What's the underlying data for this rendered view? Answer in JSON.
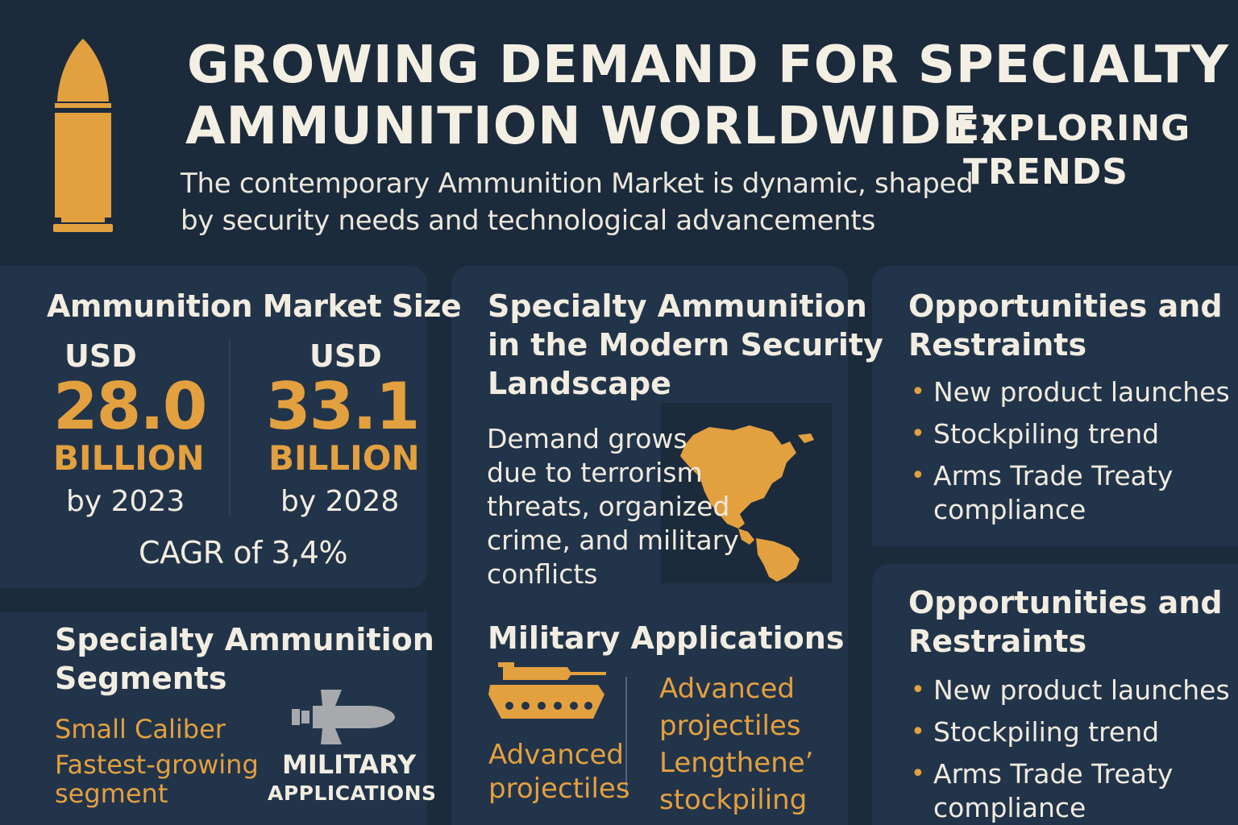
{
  "header": {
    "title_line1": "GROWING DEMAND FOR SPECIALTY",
    "title_line2": "AMMUNITION WORLDWIDE:",
    "title_line3a": "EXPLORING",
    "title_line3b": "TRENDS",
    "intro_line1": "The contemporary Ammunition Market is dynamic, shaped",
    "intro_line2": "by security needs and technological advancements"
  },
  "market_size": {
    "heading": "Ammunition Market Size",
    "left": {
      "currency": "USD",
      "value": "28.0",
      "unit": "BILLION",
      "year": "by 2023"
    },
    "right": {
      "currency": "USD",
      "value": "33.1",
      "unit": "BILLION",
      "year": "by 2028"
    },
    "cagr": "CAGR of 3,4%"
  },
  "specialty_modern": {
    "heading_line1": "Specialty Ammunition",
    "heading_line2": "in the Modern Security",
    "heading_line3": "Landscape",
    "body": [
      "Demand grows",
      "due to terrorism",
      "threats, organized",
      "crime, and military",
      "conflicts"
    ]
  },
  "military_applications": {
    "heading": "Military Applications",
    "left_text": [
      "Advanced",
      "projectiles"
    ],
    "right_text": [
      "Advanced",
      "projectiles",
      "Lengtheneʼ",
      "stockpiling"
    ]
  },
  "opportunities_1": {
    "heading_line1": "Opportunities and",
    "heading_line2": "Restraints",
    "items": [
      [
        "New product launches"
      ],
      [
        "Stockpiling trend"
      ],
      [
        "Arms Trade Treaty",
        "compliance"
      ]
    ]
  },
  "opportunities_2": {
    "heading_line1": "Opportunities and",
    "heading_line2": "Restraints",
    "items": [
      [
        "New product launches"
      ],
      [
        "Stockpiling trend"
      ],
      [
        "Arms Trade Treaty",
        "compliance"
      ]
    ]
  },
  "segments": {
    "heading_line1": "Specialty Ammunition",
    "heading_line2": "Segments",
    "gold_lines": [
      "Small Caliber",
      "Fastest-growing",
      "segment"
    ],
    "icon_label_line1": "MILITARY",
    "icon_label_line2": "APPLICATIONS"
  },
  "icons": {
    "bullet": "bullet-icon",
    "map": "americas-map-icon",
    "tank": "tank-icon",
    "missile": "missile-icon"
  },
  "colors": {
    "background": "#1b2b3c",
    "panel": "#22344a",
    "accent": "#e3a03f",
    "text": "#f3eee2",
    "icon_gray": "#a7a9ad"
  }
}
